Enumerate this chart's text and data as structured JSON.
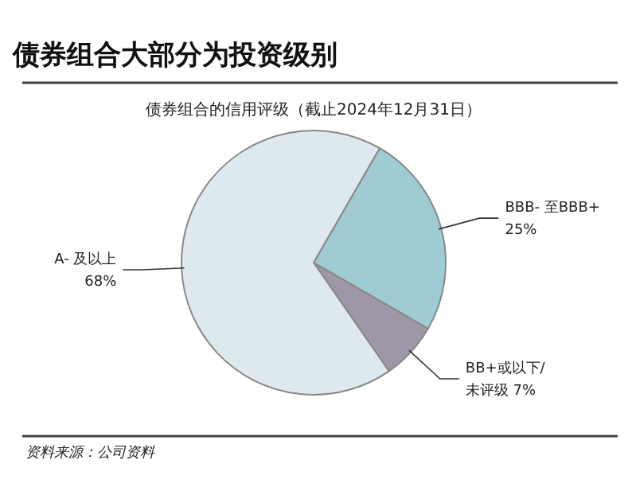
{
  "chart_data": {
    "type": "pie",
    "title": "债券组合大部分为投资级别",
    "subtitle": "债券组合的信用评级（截止2024年12月31日）",
    "categories": [
      "BBB- 至BBB+",
      "BB+或以下/未评级",
      "A- 及以上"
    ],
    "values": [
      25,
      7,
      68
    ],
    "colors": [
      "#9fcbd3",
      "#9e97a8",
      "#dde9ee"
    ],
    "value_labels": [
      "25%",
      "7%",
      "68%"
    ],
    "annotations": [
      "资料来源：公司资料"
    ]
  }
}
